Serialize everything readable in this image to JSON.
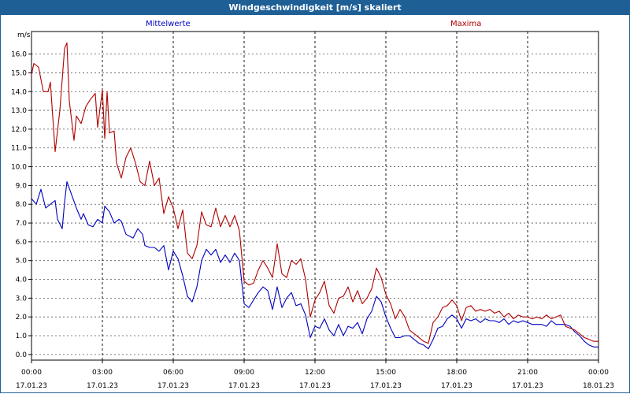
{
  "window": {
    "title": "Windgeschwindigkeit [m/s] skaliert"
  },
  "colors": {
    "mean": "#0000c0",
    "max": "#b00000",
    "titlebar": "#1e5f96",
    "grid": "#000000"
  },
  "chart_data": {
    "type": "line",
    "title": "Windgeschwindigkeit [m/s] skaliert",
    "ylabel": "m/s",
    "ylim": [
      -0.3,
      17.2
    ],
    "yticks": [
      "0.0",
      "1.0",
      "2.0",
      "3.0",
      "4.0",
      "5.0",
      "6.0",
      "7.0",
      "8.0",
      "9.0",
      "10.0",
      "11.0",
      "12.0",
      "13.0",
      "14.0",
      "15.0",
      "16.0"
    ],
    "xlim": [
      0,
      24
    ],
    "xticks": [
      {
        "time": "00:00",
        "date": "17.01.23"
      },
      {
        "time": "03:00",
        "date": "17.01.23"
      },
      {
        "time": "06:00",
        "date": "17.01.23"
      },
      {
        "time": "09:00",
        "date": "17.01.23"
      },
      {
        "time": "12:00",
        "date": "17.01.23"
      },
      {
        "time": "15:00",
        "date": "17.01.23"
      },
      {
        "time": "18:00",
        "date": "17.01.23"
      },
      {
        "time": "21:00",
        "date": "17.01.23"
      },
      {
        "time": "00:00",
        "date": "18.01.23"
      }
    ],
    "grid": true,
    "series": [
      {
        "name": "Mittelwerte",
        "color": "#0000c0",
        "points": [
          [
            0.0,
            8.3
          ],
          [
            0.2,
            8.0
          ],
          [
            0.4,
            8.8
          ],
          [
            0.6,
            7.8
          ],
          [
            0.8,
            8.0
          ],
          [
            1.0,
            8.2
          ],
          [
            1.1,
            7.2
          ],
          [
            1.3,
            6.7
          ],
          [
            1.4,
            8.1
          ],
          [
            1.5,
            9.2
          ],
          [
            1.7,
            8.5
          ],
          [
            1.9,
            7.8
          ],
          [
            2.1,
            7.2
          ],
          [
            2.2,
            7.5
          ],
          [
            2.4,
            6.9
          ],
          [
            2.6,
            6.8
          ],
          [
            2.8,
            7.2
          ],
          [
            3.0,
            7.0
          ],
          [
            3.1,
            7.9
          ],
          [
            3.3,
            7.6
          ],
          [
            3.5,
            7.0
          ],
          [
            3.7,
            7.2
          ],
          [
            3.8,
            7.1
          ],
          [
            4.0,
            6.4
          ],
          [
            4.3,
            6.2
          ],
          [
            4.5,
            6.7
          ],
          [
            4.7,
            6.4
          ],
          [
            4.8,
            5.8
          ],
          [
            5.0,
            5.7
          ],
          [
            5.2,
            5.7
          ],
          [
            5.4,
            5.5
          ],
          [
            5.6,
            5.8
          ],
          [
            5.8,
            4.5
          ],
          [
            6.0,
            5.5
          ],
          [
            6.2,
            5.1
          ],
          [
            6.4,
            4.2
          ],
          [
            6.6,
            3.1
          ],
          [
            6.8,
            2.8
          ],
          [
            7.0,
            3.6
          ],
          [
            7.2,
            5.0
          ],
          [
            7.4,
            5.6
          ],
          [
            7.6,
            5.3
          ],
          [
            7.8,
            5.6
          ],
          [
            8.0,
            4.9
          ],
          [
            8.2,
            5.3
          ],
          [
            8.4,
            4.9
          ],
          [
            8.6,
            5.4
          ],
          [
            8.8,
            5.0
          ],
          [
            9.0,
            2.7
          ],
          [
            9.2,
            2.5
          ],
          [
            9.4,
            2.9
          ],
          [
            9.6,
            3.3
          ],
          [
            9.8,
            3.6
          ],
          [
            10.0,
            3.4
          ],
          [
            10.2,
            2.4
          ],
          [
            10.4,
            3.6
          ],
          [
            10.6,
            2.5
          ],
          [
            10.8,
            3.0
          ],
          [
            11.0,
            3.3
          ],
          [
            11.2,
            2.6
          ],
          [
            11.4,
            2.7
          ],
          [
            11.6,
            2.1
          ],
          [
            11.8,
            0.9
          ],
          [
            12.0,
            1.5
          ],
          [
            12.2,
            1.4
          ],
          [
            12.4,
            1.9
          ],
          [
            12.6,
            1.3
          ],
          [
            12.8,
            1.0
          ],
          [
            13.0,
            1.6
          ],
          [
            13.2,
            1.0
          ],
          [
            13.4,
            1.5
          ],
          [
            13.6,
            1.4
          ],
          [
            13.8,
            1.7
          ],
          [
            14.0,
            1.1
          ],
          [
            14.2,
            1.9
          ],
          [
            14.4,
            2.3
          ],
          [
            14.6,
            3.1
          ],
          [
            14.8,
            2.8
          ],
          [
            15.0,
            2.0
          ],
          [
            15.2,
            1.4
          ],
          [
            15.4,
            0.9
          ],
          [
            15.6,
            0.9
          ],
          [
            15.8,
            1.0
          ],
          [
            16.0,
            1.0
          ],
          [
            16.2,
            0.8
          ],
          [
            16.4,
            0.6
          ],
          [
            16.6,
            0.5
          ],
          [
            16.8,
            0.3
          ],
          [
            17.0,
            0.8
          ],
          [
            17.2,
            1.4
          ],
          [
            17.4,
            1.5
          ],
          [
            17.6,
            1.9
          ],
          [
            17.8,
            2.1
          ],
          [
            18.0,
            1.9
          ],
          [
            18.2,
            1.4
          ],
          [
            18.4,
            1.9
          ],
          [
            18.6,
            1.8
          ],
          [
            18.8,
            1.9
          ],
          [
            19.0,
            1.7
          ],
          [
            19.2,
            1.9
          ],
          [
            19.4,
            1.8
          ],
          [
            19.6,
            1.8
          ],
          [
            19.8,
            1.7
          ],
          [
            20.0,
            1.9
          ],
          [
            20.2,
            1.6
          ],
          [
            20.4,
            1.8
          ],
          [
            20.6,
            1.7
          ],
          [
            20.8,
            1.8
          ],
          [
            21.0,
            1.7
          ],
          [
            21.2,
            1.6
          ],
          [
            21.4,
            1.6
          ],
          [
            21.6,
            1.6
          ],
          [
            21.8,
            1.5
          ],
          [
            22.0,
            1.8
          ],
          [
            22.2,
            1.6
          ],
          [
            22.4,
            1.6
          ],
          [
            22.6,
            1.6
          ],
          [
            22.8,
            1.5
          ],
          [
            23.0,
            1.2
          ],
          [
            23.2,
            1.0
          ],
          [
            23.4,
            0.7
          ],
          [
            23.6,
            0.5
          ],
          [
            23.8,
            0.4
          ],
          [
            24.0,
            0.4
          ]
        ]
      },
      {
        "name": "Maxima",
        "color": "#b00000",
        "points": [
          [
            0.0,
            14.9
          ],
          [
            0.1,
            15.5
          ],
          [
            0.3,
            15.3
          ],
          [
            0.5,
            14.0
          ],
          [
            0.7,
            14.0
          ],
          [
            0.8,
            14.5
          ],
          [
            1.0,
            10.8
          ],
          [
            1.2,
            13.0
          ],
          [
            1.4,
            16.3
          ],
          [
            1.5,
            16.6
          ],
          [
            1.6,
            13.5
          ],
          [
            1.8,
            11.4
          ],
          [
            1.9,
            12.7
          ],
          [
            2.1,
            12.3
          ],
          [
            2.3,
            13.2
          ],
          [
            2.5,
            13.6
          ],
          [
            2.7,
            13.9
          ],
          [
            2.8,
            12.1
          ],
          [
            3.0,
            14.1
          ],
          [
            3.1,
            11.5
          ],
          [
            3.2,
            14.0
          ],
          [
            3.3,
            11.8
          ],
          [
            3.5,
            11.9
          ],
          [
            3.6,
            10.2
          ],
          [
            3.8,
            9.4
          ],
          [
            4.0,
            10.5
          ],
          [
            4.2,
            11.0
          ],
          [
            4.4,
            10.2
          ],
          [
            4.6,
            9.2
          ],
          [
            4.8,
            9.0
          ],
          [
            5.0,
            10.3
          ],
          [
            5.2,
            9.0
          ],
          [
            5.4,
            9.4
          ],
          [
            5.6,
            7.5
          ],
          [
            5.8,
            8.4
          ],
          [
            6.0,
            7.8
          ],
          [
            6.2,
            6.7
          ],
          [
            6.4,
            7.7
          ],
          [
            6.6,
            5.4
          ],
          [
            6.8,
            5.1
          ],
          [
            7.0,
            5.8
          ],
          [
            7.2,
            7.6
          ],
          [
            7.4,
            6.9
          ],
          [
            7.6,
            6.8
          ],
          [
            7.8,
            7.8
          ],
          [
            8.0,
            6.8
          ],
          [
            8.2,
            7.4
          ],
          [
            8.4,
            6.8
          ],
          [
            8.6,
            7.4
          ],
          [
            8.8,
            6.6
          ],
          [
            9.0,
            3.9
          ],
          [
            9.2,
            3.7
          ],
          [
            9.4,
            3.8
          ],
          [
            9.6,
            4.5
          ],
          [
            9.8,
            5.0
          ],
          [
            10.0,
            4.6
          ],
          [
            10.2,
            4.1
          ],
          [
            10.4,
            5.9
          ],
          [
            10.6,
            4.3
          ],
          [
            10.8,
            4.1
          ],
          [
            11.0,
            5.0
          ],
          [
            11.2,
            4.8
          ],
          [
            11.4,
            5.1
          ],
          [
            11.6,
            4.0
          ],
          [
            11.8,
            2.0
          ],
          [
            12.0,
            2.9
          ],
          [
            12.2,
            3.3
          ],
          [
            12.4,
            3.9
          ],
          [
            12.6,
            2.6
          ],
          [
            12.8,
            2.2
          ],
          [
            13.0,
            3.0
          ],
          [
            13.2,
            3.1
          ],
          [
            13.4,
            3.6
          ],
          [
            13.6,
            2.8
          ],
          [
            13.8,
            3.4
          ],
          [
            14.0,
            2.7
          ],
          [
            14.2,
            3.0
          ],
          [
            14.4,
            3.5
          ],
          [
            14.6,
            4.6
          ],
          [
            14.8,
            4.1
          ],
          [
            15.0,
            3.2
          ],
          [
            15.2,
            2.7
          ],
          [
            15.4,
            1.9
          ],
          [
            15.6,
            2.4
          ],
          [
            15.8,
            2.0
          ],
          [
            16.0,
            1.3
          ],
          [
            16.2,
            1.1
          ],
          [
            16.4,
            0.9
          ],
          [
            16.6,
            0.7
          ],
          [
            16.8,
            0.6
          ],
          [
            17.0,
            1.7
          ],
          [
            17.2,
            2.0
          ],
          [
            17.4,
            2.5
          ],
          [
            17.6,
            2.6
          ],
          [
            17.8,
            2.9
          ],
          [
            18.0,
            2.6
          ],
          [
            18.2,
            1.8
          ],
          [
            18.4,
            2.5
          ],
          [
            18.6,
            2.6
          ],
          [
            18.8,
            2.3
          ],
          [
            19.0,
            2.4
          ],
          [
            19.2,
            2.3
          ],
          [
            19.4,
            2.4
          ],
          [
            19.6,
            2.2
          ],
          [
            19.8,
            2.3
          ],
          [
            20.0,
            2.0
          ],
          [
            20.2,
            2.2
          ],
          [
            20.4,
            1.9
          ],
          [
            20.6,
            2.1
          ],
          [
            20.8,
            2.0
          ],
          [
            21.0,
            2.0
          ],
          [
            21.2,
            1.9
          ],
          [
            21.4,
            2.0
          ],
          [
            21.6,
            1.9
          ],
          [
            21.8,
            2.1
          ],
          [
            22.0,
            1.9
          ],
          [
            22.2,
            2.0
          ],
          [
            22.4,
            2.1
          ],
          [
            22.6,
            1.5
          ],
          [
            22.8,
            1.4
          ],
          [
            23.0,
            1.3
          ],
          [
            23.2,
            1.1
          ],
          [
            23.4,
            0.9
          ],
          [
            23.6,
            0.8
          ],
          [
            23.8,
            0.7
          ],
          [
            24.0,
            0.7
          ]
        ]
      }
    ]
  }
}
